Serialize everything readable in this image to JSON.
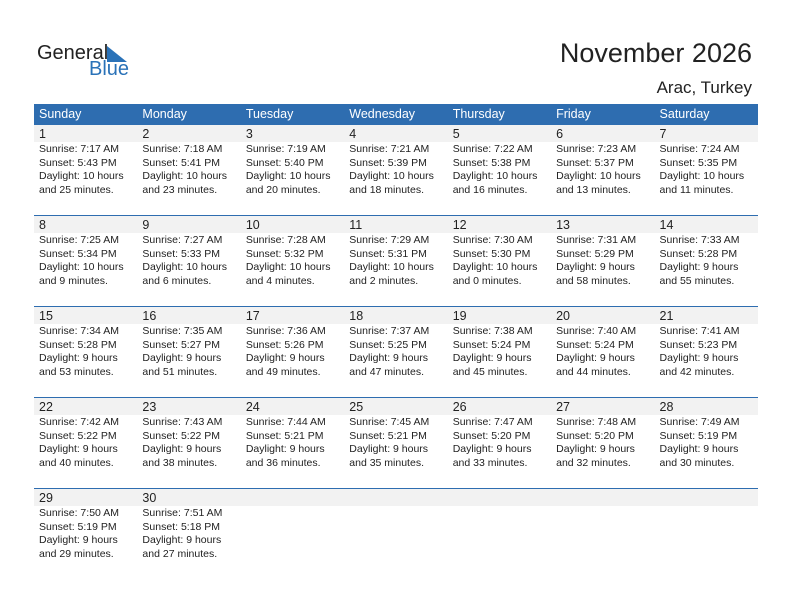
{
  "logo": {
    "general": "General",
    "blue": "Blue"
  },
  "title": "November 2026",
  "location": "Arac, Turkey",
  "colors": {
    "accent": "#2e6db0",
    "band": "#f2f2f2"
  },
  "weekdays": [
    "Sunday",
    "Monday",
    "Tuesday",
    "Wednesday",
    "Thursday",
    "Friday",
    "Saturday"
  ],
  "weeks": [
    [
      {
        "d": "1",
        "sr": "Sunrise: 7:17 AM",
        "ss": "Sunset: 5:43 PM",
        "dl": "Daylight: 10 hours",
        "dm": "and 25 minutes."
      },
      {
        "d": "2",
        "sr": "Sunrise: 7:18 AM",
        "ss": "Sunset: 5:41 PM",
        "dl": "Daylight: 10 hours",
        "dm": "and 23 minutes."
      },
      {
        "d": "3",
        "sr": "Sunrise: 7:19 AM",
        "ss": "Sunset: 5:40 PM",
        "dl": "Daylight: 10 hours",
        "dm": "and 20 minutes."
      },
      {
        "d": "4",
        "sr": "Sunrise: 7:21 AM",
        "ss": "Sunset: 5:39 PM",
        "dl": "Daylight: 10 hours",
        "dm": "and 18 minutes."
      },
      {
        "d": "5",
        "sr": "Sunrise: 7:22 AM",
        "ss": "Sunset: 5:38 PM",
        "dl": "Daylight: 10 hours",
        "dm": "and 16 minutes."
      },
      {
        "d": "6",
        "sr": "Sunrise: 7:23 AM",
        "ss": "Sunset: 5:37 PM",
        "dl": "Daylight: 10 hours",
        "dm": "and 13 minutes."
      },
      {
        "d": "7",
        "sr": "Sunrise: 7:24 AM",
        "ss": "Sunset: 5:35 PM",
        "dl": "Daylight: 10 hours",
        "dm": "and 11 minutes."
      }
    ],
    [
      {
        "d": "8",
        "sr": "Sunrise: 7:25 AM",
        "ss": "Sunset: 5:34 PM",
        "dl": "Daylight: 10 hours",
        "dm": "and 9 minutes."
      },
      {
        "d": "9",
        "sr": "Sunrise: 7:27 AM",
        "ss": "Sunset: 5:33 PM",
        "dl": "Daylight: 10 hours",
        "dm": "and 6 minutes."
      },
      {
        "d": "10",
        "sr": "Sunrise: 7:28 AM",
        "ss": "Sunset: 5:32 PM",
        "dl": "Daylight: 10 hours",
        "dm": "and 4 minutes."
      },
      {
        "d": "11",
        "sr": "Sunrise: 7:29 AM",
        "ss": "Sunset: 5:31 PM",
        "dl": "Daylight: 10 hours",
        "dm": "and 2 minutes."
      },
      {
        "d": "12",
        "sr": "Sunrise: 7:30 AM",
        "ss": "Sunset: 5:30 PM",
        "dl": "Daylight: 10 hours",
        "dm": "and 0 minutes."
      },
      {
        "d": "13",
        "sr": "Sunrise: 7:31 AM",
        "ss": "Sunset: 5:29 PM",
        "dl": "Daylight: 9 hours",
        "dm": "and 58 minutes."
      },
      {
        "d": "14",
        "sr": "Sunrise: 7:33 AM",
        "ss": "Sunset: 5:28 PM",
        "dl": "Daylight: 9 hours",
        "dm": "and 55 minutes."
      }
    ],
    [
      {
        "d": "15",
        "sr": "Sunrise: 7:34 AM",
        "ss": "Sunset: 5:28 PM",
        "dl": "Daylight: 9 hours",
        "dm": "and 53 minutes."
      },
      {
        "d": "16",
        "sr": "Sunrise: 7:35 AM",
        "ss": "Sunset: 5:27 PM",
        "dl": "Daylight: 9 hours",
        "dm": "and 51 minutes."
      },
      {
        "d": "17",
        "sr": "Sunrise: 7:36 AM",
        "ss": "Sunset: 5:26 PM",
        "dl": "Daylight: 9 hours",
        "dm": "and 49 minutes."
      },
      {
        "d": "18",
        "sr": "Sunrise: 7:37 AM",
        "ss": "Sunset: 5:25 PM",
        "dl": "Daylight: 9 hours",
        "dm": "and 47 minutes."
      },
      {
        "d": "19",
        "sr": "Sunrise: 7:38 AM",
        "ss": "Sunset: 5:24 PM",
        "dl": "Daylight: 9 hours",
        "dm": "and 45 minutes."
      },
      {
        "d": "20",
        "sr": "Sunrise: 7:40 AM",
        "ss": "Sunset: 5:24 PM",
        "dl": "Daylight: 9 hours",
        "dm": "and 44 minutes."
      },
      {
        "d": "21",
        "sr": "Sunrise: 7:41 AM",
        "ss": "Sunset: 5:23 PM",
        "dl": "Daylight: 9 hours",
        "dm": "and 42 minutes."
      }
    ],
    [
      {
        "d": "22",
        "sr": "Sunrise: 7:42 AM",
        "ss": "Sunset: 5:22 PM",
        "dl": "Daylight: 9 hours",
        "dm": "and 40 minutes."
      },
      {
        "d": "23",
        "sr": "Sunrise: 7:43 AM",
        "ss": "Sunset: 5:22 PM",
        "dl": "Daylight: 9 hours",
        "dm": "and 38 minutes."
      },
      {
        "d": "24",
        "sr": "Sunrise: 7:44 AM",
        "ss": "Sunset: 5:21 PM",
        "dl": "Daylight: 9 hours",
        "dm": "and 36 minutes."
      },
      {
        "d": "25",
        "sr": "Sunrise: 7:45 AM",
        "ss": "Sunset: 5:21 PM",
        "dl": "Daylight: 9 hours",
        "dm": "and 35 minutes."
      },
      {
        "d": "26",
        "sr": "Sunrise: 7:47 AM",
        "ss": "Sunset: 5:20 PM",
        "dl": "Daylight: 9 hours",
        "dm": "and 33 minutes."
      },
      {
        "d": "27",
        "sr": "Sunrise: 7:48 AM",
        "ss": "Sunset: 5:20 PM",
        "dl": "Daylight: 9 hours",
        "dm": "and 32 minutes."
      },
      {
        "d": "28",
        "sr": "Sunrise: 7:49 AM",
        "ss": "Sunset: 5:19 PM",
        "dl": "Daylight: 9 hours",
        "dm": "and 30 minutes."
      }
    ],
    [
      {
        "d": "29",
        "sr": "Sunrise: 7:50 AM",
        "ss": "Sunset: 5:19 PM",
        "dl": "Daylight: 9 hours",
        "dm": "and 29 minutes."
      },
      {
        "d": "30",
        "sr": "Sunrise: 7:51 AM",
        "ss": "Sunset: 5:18 PM",
        "dl": "Daylight: 9 hours",
        "dm": "and 27 minutes."
      }
    ]
  ]
}
